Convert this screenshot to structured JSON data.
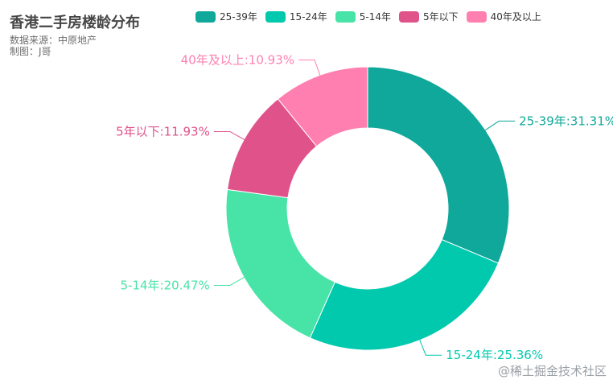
{
  "chart_data": {
    "type": "pie",
    "title": "香港二手房楼龄分布",
    "subtitle_lines": [
      "数据来源：中原地产",
      "制图：J哥"
    ],
    "series": [
      {
        "name": "25-39年",
        "value": 31.31,
        "label": "25-39年:31.31%",
        "color": "#0fa89a"
      },
      {
        "name": "15-24年",
        "value": 25.36,
        "label": "15-24年:25.36%",
        "color": "#00c9ae"
      },
      {
        "name": "5-14年",
        "value": 20.47,
        "label": "5-14年:20.47%",
        "color": "#47e3a7"
      },
      {
        "name": "5年以下",
        "value": 11.93,
        "label": "5年以下:11.93%",
        "color": "#e0528a"
      },
      {
        "name": "40年及以上",
        "value": 10.93,
        "label": "40年及以上:10.93%",
        "color": "#ff80b0"
      }
    ],
    "legend_position": "top"
  },
  "watermark": "@稀土掘金技术社区"
}
